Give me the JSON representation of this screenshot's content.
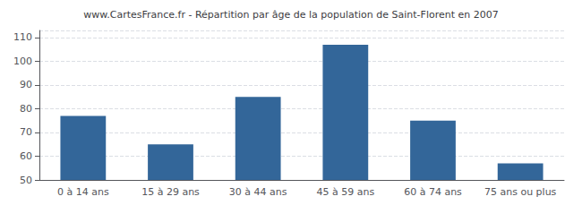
{
  "chart_data": {
    "type": "bar",
    "title": "www.CartesFrance.fr - Répartition par âge de la population de Saint-Florent en 2007",
    "categories": [
      "0 à 14 ans",
      "15 à 29 ans",
      "30 à 44 ans",
      "45 à 59 ans",
      "60 à 74 ans",
      "75 ans ou plus"
    ],
    "values": [
      77,
      65,
      85,
      107,
      75,
      57
    ],
    "color": "#336699",
    "ylim": [
      50,
      113
    ],
    "yticks": [
      50,
      60,
      70,
      80,
      90,
      100,
      110
    ],
    "grid": true
  }
}
